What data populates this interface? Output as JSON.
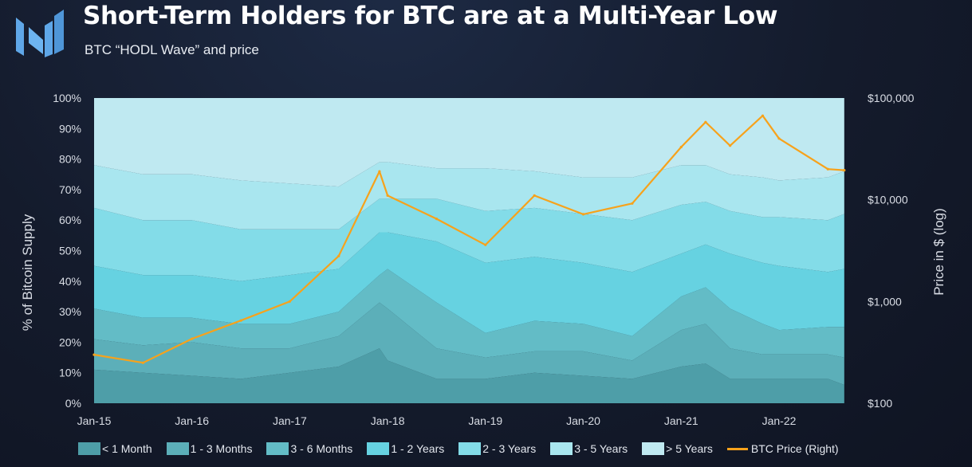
{
  "header": {
    "title": "Short-Term Holders for BTC are at a Multi-Year Low",
    "subtitle": "BTC “HODL Wave” and price"
  },
  "colors": {
    "background": "#141a2a",
    "price_line": "#f7a21b",
    "logo": "#5fa7e8",
    "bands": [
      "#4e9ea8",
      "#5cafb9",
      "#63bcc6",
      "#66d2e1",
      "#83dce8",
      "#a9e6ef",
      "#bfe9f1"
    ]
  },
  "chart_data": {
    "type": "area",
    "stacked": true,
    "x": [
      "Jan-15",
      "Jul-15",
      "Jan-16",
      "Jul-16",
      "Jan-17",
      "Jul-17",
      "Dec-17",
      "Jan-18",
      "Jul-18",
      "Jan-19",
      "Jul-19",
      "Jan-20",
      "Jul-20",
      "Jan-21",
      "Apr-21",
      "Jul-21",
      "Nov-21",
      "Jan-22",
      "Jul-22",
      "Sep-22"
    ],
    "x_tick_labels": [
      "Jan-15",
      "Jan-16",
      "Jan-17",
      "Jan-18",
      "Jan-19",
      "Jan-20",
      "Jan-21",
      "Jan-22"
    ],
    "y_left": {
      "label": "% of Bitcoin Supply",
      "range": [
        0,
        100
      ],
      "ticks": [
        "0%",
        "10%",
        "20%",
        "30%",
        "40%",
        "50%",
        "60%",
        "70%",
        "80%",
        "90%",
        "100%"
      ]
    },
    "y_right": {
      "label": "Price in $ (log)",
      "scale": "log",
      "range": [
        100,
        100000
      ],
      "ticks": [
        "$100",
        "$1,000",
        "$10,000",
        "$100,000"
      ]
    },
    "series": [
      {
        "name": "< 1 Month",
        "values": [
          11,
          10,
          9,
          8,
          10,
          12,
          18,
          14,
          8,
          8,
          10,
          9,
          8,
          12,
          13,
          8,
          8,
          8,
          8,
          6
        ]
      },
      {
        "name": "1 - 3 Months",
        "values": [
          10,
          9,
          11,
          10,
          8,
          10,
          15,
          17,
          10,
          7,
          7,
          8,
          6,
          12,
          13,
          10,
          8,
          8,
          8,
          9
        ]
      },
      {
        "name": "3 - 6 Months",
        "values": [
          10,
          9,
          8,
          8,
          8,
          8,
          9,
          13,
          15,
          8,
          10,
          9,
          8,
          11,
          12,
          13,
          10,
          8,
          9,
          10
        ]
      },
      {
        "name": "1 - 2 Years",
        "values": [
          14,
          14,
          14,
          14,
          16,
          14,
          14,
          12,
          20,
          23,
          21,
          20,
          21,
          14,
          14,
          18,
          20,
          21,
          18,
          19
        ]
      },
      {
        "name": "2 - 3 Years",
        "values": [
          19,
          18,
          18,
          17,
          15,
          13,
          11,
          11,
          14,
          17,
          16,
          16,
          17,
          16,
          14,
          14,
          15,
          16,
          17,
          18
        ]
      },
      {
        "name": "3 - 5 Years",
        "values": [
          14,
          15,
          15,
          16,
          15,
          14,
          12,
          12,
          10,
          14,
          12,
          12,
          14,
          13,
          12,
          12,
          13,
          12,
          14,
          14
        ]
      },
      {
        "name": "> 5 Years",
        "values": [
          22,
          25,
          25,
          27,
          28,
          29,
          21,
          21,
          23,
          23,
          24,
          26,
          26,
          22,
          22,
          25,
          26,
          27,
          26,
          24
        ]
      },
      {
        "name": "BTC Price (Right)",
        "axis": "right",
        "values": [
          300,
          250,
          430,
          650,
          1000,
          2800,
          19000,
          11000,
          6500,
          3600,
          11000,
          7200,
          9200,
          33000,
          58000,
          34000,
          67000,
          40000,
          20000,
          19500
        ]
      }
    ]
  },
  "legend": {
    "items": [
      "< 1 Month",
      "1 - 3 Months",
      "3 - 6 Months",
      "1 - 2 Years",
      "2 - 3 Years",
      "3 - 5 Years",
      "> 5 Years",
      "BTC Price (Right)"
    ]
  }
}
